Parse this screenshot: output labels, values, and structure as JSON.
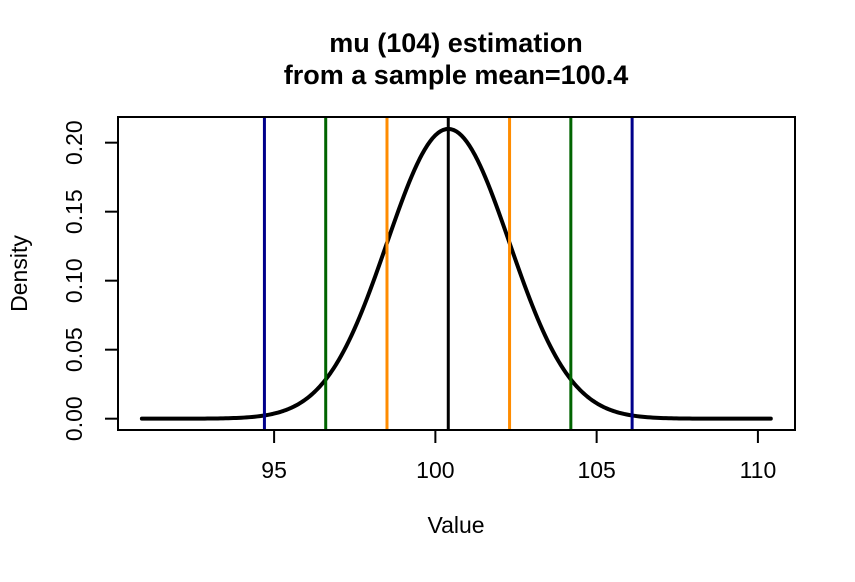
{
  "title": {
    "line1": "mu (104) estimation",
    "line2": "from a sample mean=100.4"
  },
  "chart_data": {
    "type": "line",
    "title": "mu (104) estimation from a sample mean=100.4",
    "xlabel": "Value",
    "ylabel": "Density",
    "xlim": [
      90.16,
      111.15
    ],
    "ylim": [
      -0.0082,
      0.2186
    ],
    "x_tick_values": [
      95,
      100,
      105,
      110
    ],
    "x_tick_labels": [
      "95",
      "100",
      "105",
      "110"
    ],
    "y_tick_values": [
      0.0,
      0.05,
      0.1,
      0.15,
      0.2
    ],
    "y_tick_labels": [
      "0.00",
      "0.05",
      "0.10",
      "0.15",
      "0.20"
    ],
    "grid": false,
    "legend": null,
    "curve": {
      "distribution": "normal-density",
      "mean": 100.4,
      "sd": 1.9,
      "x_from": 90.9,
      "x_to": 110.4,
      "peak_density": 0.21,
      "color": "#000000"
    },
    "curve_samples": {
      "x": [
        91,
        92,
        93,
        94,
        95,
        96,
        97,
        98,
        99,
        100,
        101,
        102,
        103,
        104,
        105,
        106,
        107,
        108,
        109,
        110
      ],
      "density": [
        1e-06,
        1.2e-05,
        0.000107,
        0.000722,
        0.003702,
        0.014387,
        0.042355,
        0.094556,
        0.160057,
        0.205387,
        0.199776,
        0.147303,
        0.082334,
        0.03488,
        0.011212,
        0.00273,
        0.000504,
        7e-05,
        8e-06,
        1e-06
      ]
    },
    "vlines": [
      {
        "x": 94.7,
        "color": "#00008B"
      },
      {
        "x": 96.6,
        "color": "#006400"
      },
      {
        "x": 98.5,
        "color": "#FF8C00"
      },
      {
        "x": 100.4,
        "color": "#000000"
      },
      {
        "x": 102.3,
        "color": "#FF8C00"
      },
      {
        "x": 104.2,
        "color": "#006400"
      },
      {
        "x": 106.1,
        "color": "#00008B"
      }
    ]
  }
}
